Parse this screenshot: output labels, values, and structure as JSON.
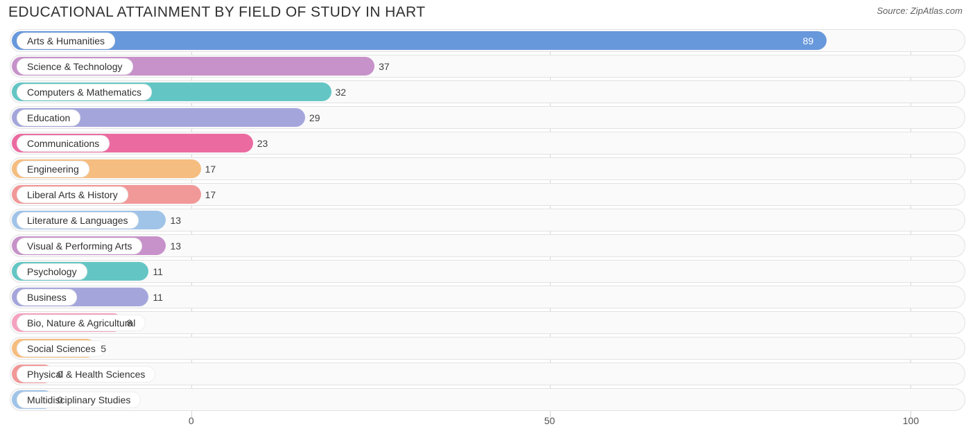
{
  "header": {
    "title": "EDUCATIONAL ATTAINMENT BY FIELD OF STUDY IN HART",
    "source_prefix": "Source: ",
    "source_name": "ZipAtlas.com"
  },
  "chart": {
    "type": "bar",
    "orientation": "horizontal",
    "background_color": "#ffffff",
    "track_color": "#fafafa",
    "track_border_color": "#e2e2e2",
    "grid_color": "#d5d5d5",
    "label_fontsize": 14,
    "value_fontsize": 14,
    "xlim": [
      -5,
      105
    ],
    "zero_offset_pct": 19.0,
    "axis": {
      "ticks": [
        0,
        50,
        100
      ],
      "tick_positions_pct": [
        19.0,
        56.5,
        94.3
      ]
    },
    "bars": [
      {
        "label": "Arts & Humanities",
        "value": 89,
        "color": "#6898dc",
        "value_inside": true
      },
      {
        "label": "Science & Technology",
        "value": 37,
        "color": "#c792ca",
        "value_inside": false
      },
      {
        "label": "Computers & Mathematics",
        "value": 32,
        "color": "#64c6c4",
        "value_inside": false
      },
      {
        "label": "Education",
        "value": 29,
        "color": "#a4a6db",
        "value_inside": false
      },
      {
        "label": "Communications",
        "value": 23,
        "color": "#eb6ba1",
        "value_inside": false
      },
      {
        "label": "Engineering",
        "value": 17,
        "color": "#f5bd80",
        "value_inside": false
      },
      {
        "label": "Liberal Arts & History",
        "value": 17,
        "color": "#f19898",
        "value_inside": false
      },
      {
        "label": "Literature & Languages",
        "value": 13,
        "color": "#a0c3e8",
        "value_inside": false
      },
      {
        "label": "Visual & Performing Arts",
        "value": 13,
        "color": "#c792ca",
        "value_inside": false
      },
      {
        "label": "Psychology",
        "value": 11,
        "color": "#64c6c4",
        "value_inside": false
      },
      {
        "label": "Business",
        "value": 11,
        "color": "#a4a6db",
        "value_inside": false
      },
      {
        "label": "Bio, Nature & Agricultural",
        "value": 8,
        "color": "#f4a2c0",
        "value_inside": false
      },
      {
        "label": "Social Sciences",
        "value": 5,
        "color": "#f5bd80",
        "value_inside": false
      },
      {
        "label": "Physical & Health Sciences",
        "value": 0,
        "color": "#f19898",
        "value_inside": false
      },
      {
        "label": "Multidisciplinary Studies",
        "value": 0,
        "color": "#a0c3e8",
        "value_inside": false
      }
    ]
  }
}
